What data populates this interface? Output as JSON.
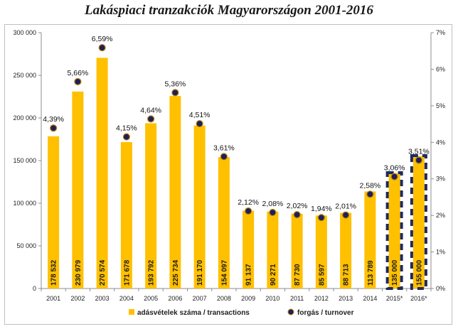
{
  "title": "Lakáspiaci tranzakciók Magyarországon 2001-2016",
  "colors": {
    "bar": "#ffc000",
    "dot": "#1f1f5c",
    "dot_stroke": "#b8860b",
    "estimate_dash": "#1f2a5c",
    "axis": "#8c8c8c"
  },
  "chart_data": {
    "type": "bar",
    "categories": [
      "2001",
      "2002",
      "2003",
      "2004",
      "2005",
      "2006",
      "2007",
      "2008",
      "2009",
      "2010",
      "2011",
      "2012",
      "2013",
      "2014",
      "2015*",
      "2016*"
    ],
    "series": [
      {
        "name": "adásvételek száma / transactions",
        "type": "bar",
        "axis": "left",
        "values": [
          178532,
          230979,
          270574,
          171678,
          193792,
          225734,
          191170,
          154097,
          91137,
          90271,
          87730,
          85597,
          88713,
          113789,
          135000,
          155000
        ],
        "value_labels": [
          "178 532",
          "230 979",
          "270 574",
          "171 678",
          "193 792",
          "225 734",
          "191 170",
          "154 097",
          "91 137",
          "90 271",
          "87 730",
          "85 597",
          "88 713",
          "113 789",
          "135 000",
          "155 000"
        ],
        "estimated": [
          false,
          false,
          false,
          false,
          false,
          false,
          false,
          false,
          false,
          false,
          false,
          false,
          false,
          false,
          true,
          true
        ]
      },
      {
        "name": "forgás / turnover",
        "type": "scatter",
        "axis": "right",
        "values": [
          4.39,
          5.66,
          6.59,
          4.15,
          4.64,
          5.36,
          4.51,
          3.61,
          2.12,
          2.08,
          2.02,
          1.94,
          2.01,
          2.58,
          3.06,
          3.51
        ],
        "value_labels": [
          "4,39%",
          "5,66%",
          "6,59%",
          "4,15%",
          "4,64%",
          "5,36%",
          "4,51%",
          "3,61%",
          "2,12%",
          "2,08%",
          "2,02%",
          "1,94%",
          "2,01%",
          "2,58%",
          "3,06%",
          "3,51%"
        ]
      }
    ],
    "y_left": {
      "min": 0,
      "max": 300000,
      "ticks": [
        0,
        50000,
        100000,
        150000,
        200000,
        250000,
        300000
      ],
      "tick_labels": [
        "0",
        "50 000",
        "100 000",
        "150 000",
        "200 000",
        "250 000",
        "300 000"
      ]
    },
    "y_right": {
      "min": 0,
      "max": 7,
      "ticks": [
        0,
        1,
        2,
        3,
        4,
        5,
        6,
        7
      ],
      "tick_labels": [
        "0%",
        "1%",
        "2%",
        "3%",
        "4%",
        "5%",
        "6%",
        "7%"
      ]
    },
    "grid": false,
    "legend_position": "bottom"
  }
}
